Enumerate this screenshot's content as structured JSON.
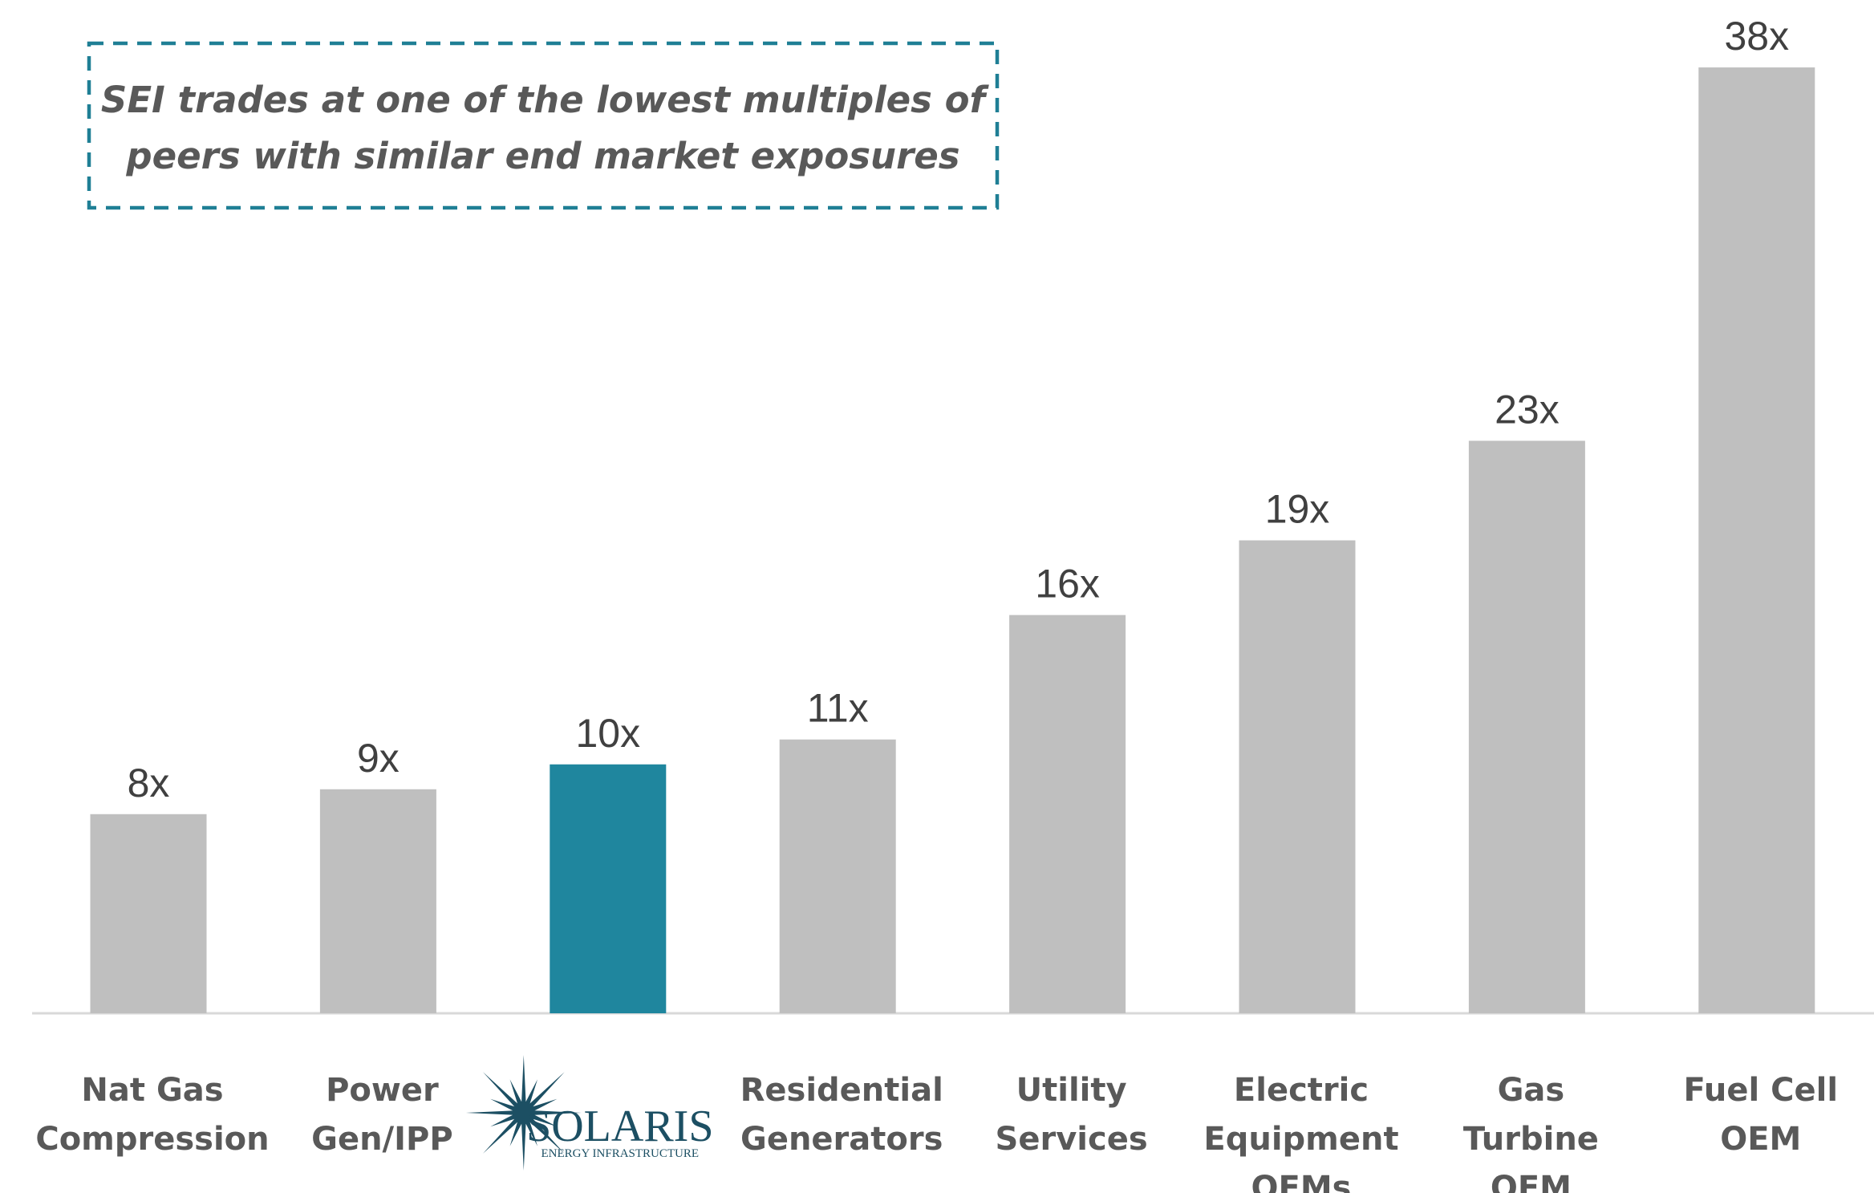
{
  "chart_data": {
    "type": "bar",
    "annotation": [
      "SEI trades at one of the lowest multiples of",
      "peers with similar end market exposures"
    ],
    "categories": [
      [
        "Nat Gas",
        "Compression"
      ],
      [
        "Power",
        "Gen/IPP"
      ],
      [
        "SOLARIS",
        "ENERGY INFRASTRUCTURE"
      ],
      [
        "Residential",
        "Generators"
      ],
      [
        "Utility",
        "Services"
      ],
      [
        "Electric",
        "Equipment",
        "OEMs"
      ],
      [
        "Gas",
        "Turbine",
        "OEM"
      ],
      [
        "Fuel Cell",
        "OEM"
      ]
    ],
    "values": [
      8,
      9,
      10,
      11,
      16,
      19,
      23,
      38
    ],
    "value_labels": [
      "8x",
      "9x",
      "10x",
      "11x",
      "16x",
      "19x",
      "23x",
      "38x"
    ],
    "colors": [
      "#bfbfbf",
      "#bfbfbf",
      "#1f869e",
      "#bfbfbf",
      "#bfbfbf",
      "#bfbfbf",
      "#bfbfbf",
      "#bfbfbf"
    ],
    "ylim": [
      0,
      40
    ]
  }
}
